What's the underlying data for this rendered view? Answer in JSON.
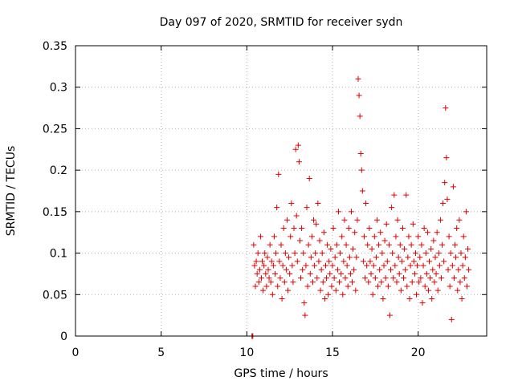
{
  "chart_data": {
    "type": "scatter",
    "title": "Day 097 of 2020, SRMTID for receiver sydn",
    "xlabel": "GPS time / hours",
    "ylabel": "SRMTID / TECUs",
    "xlim": [
      0,
      24
    ],
    "ylim": [
      0,
      0.35
    ],
    "grid": true,
    "marker": "+",
    "color": "#e00000",
    "x_ticks": [
      0,
      5,
      10,
      15,
      20
    ],
    "x_tick_labels": [
      "0",
      "5",
      "10",
      "15",
      "20"
    ],
    "y_ticks": [
      0,
      0.05,
      0.1,
      0.15,
      0.2,
      0.25,
      0.3,
      0.35
    ],
    "y_tick_labels": [
      "0",
      "0.05",
      "0.1",
      "0.15",
      "0.2",
      "0.25",
      "0.3",
      "0.35"
    ],
    "series": [
      {
        "name": "SRMTID",
        "points": [
          [
            10.3,
            0.0
          ],
          [
            10.32,
            0.0
          ],
          [
            10.35,
            0.0
          ],
          [
            10.4,
            0.11
          ],
          [
            10.45,
            0.085
          ],
          [
            10.5,
            0.06
          ],
          [
            10.55,
            0.09
          ],
          [
            10.6,
            0.075
          ],
          [
            10.65,
            0.1
          ],
          [
            10.7,
            0.065
          ],
          [
            10.75,
            0.08
          ],
          [
            10.8,
            0.12
          ],
          [
            10.85,
            0.07
          ],
          [
            10.9,
            0.09
          ],
          [
            10.95,
            0.055
          ],
          [
            11.0,
            0.085
          ],
          [
            11.05,
            0.1
          ],
          [
            11.1,
            0.075
          ],
          [
            11.15,
            0.06
          ],
          [
            11.2,
            0.095
          ],
          [
            11.25,
            0.08
          ],
          [
            11.3,
            0.07
          ],
          [
            11.35,
            0.11
          ],
          [
            11.4,
            0.065
          ],
          [
            11.45,
            0.09
          ],
          [
            11.5,
            0.05
          ],
          [
            11.55,
            0.085
          ],
          [
            11.6,
            0.12
          ],
          [
            11.65,
            0.075
          ],
          [
            11.7,
            0.1
          ],
          [
            11.75,
            0.155
          ],
          [
            11.8,
            0.06
          ],
          [
            11.85,
            0.195
          ],
          [
            11.9,
            0.09
          ],
          [
            11.95,
            0.07
          ],
          [
            12.0,
            0.11
          ],
          [
            12.05,
            0.045
          ],
          [
            12.1,
            0.085
          ],
          [
            12.15,
            0.13
          ],
          [
            12.2,
            0.065
          ],
          [
            12.25,
            0.1
          ],
          [
            12.3,
            0.08
          ],
          [
            12.35,
            0.14
          ],
          [
            12.4,
            0.055
          ],
          [
            12.45,
            0.095
          ],
          [
            12.5,
            0.075
          ],
          [
            12.55,
            0.12
          ],
          [
            12.6,
            0.16
          ],
          [
            12.65,
            0.085
          ],
          [
            12.7,
            0.065
          ],
          [
            12.75,
            0.13
          ],
          [
            12.8,
            0.1
          ],
          [
            12.85,
            0.225
          ],
          [
            12.9,
            0.145
          ],
          [
            12.95,
            0.09
          ],
          [
            13.0,
            0.23
          ],
          [
            13.05,
            0.21
          ],
          [
            13.1,
            0.115
          ],
          [
            13.15,
            0.07
          ],
          [
            13.2,
            0.13
          ],
          [
            13.25,
            0.08
          ],
          [
            13.3,
            0.1
          ],
          [
            13.35,
            0.04
          ],
          [
            13.4,
            0.025
          ],
          [
            13.45,
            0.085
          ],
          [
            13.5,
            0.155
          ],
          [
            13.55,
            0.06
          ],
          [
            13.6,
            0.11
          ],
          [
            13.65,
            0.19
          ],
          [
            13.7,
            0.075
          ],
          [
            13.75,
            0.095
          ],
          [
            13.8,
            0.12
          ],
          [
            13.85,
            0.065
          ],
          [
            13.9,
            0.14
          ],
          [
            13.95,
            0.085
          ],
          [
            14.0,
            0.1
          ],
          [
            14.05,
            0.135
          ],
          [
            14.1,
            0.07
          ],
          [
            14.15,
            0.16
          ],
          [
            14.2,
            0.09
          ],
          [
            14.25,
            0.115
          ],
          [
            14.3,
            0.055
          ],
          [
            14.35,
            0.08
          ],
          [
            14.4,
            0.1
          ],
          [
            14.45,
            0.065
          ],
          [
            14.5,
            0.125
          ],
          [
            14.55,
            0.045
          ],
          [
            14.6,
            0.085
          ],
          [
            14.65,
            0.07
          ],
          [
            14.7,
            0.11
          ],
          [
            14.75,
            0.05
          ],
          [
            14.8,
            0.09
          ],
          [
            14.85,
            0.075
          ],
          [
            14.9,
            0.105
          ],
          [
            14.95,
            0.06
          ],
          [
            15.0,
            0.085
          ],
          [
            15.05,
            0.13
          ],
          [
            15.1,
            0.07
          ],
          [
            15.15,
            0.095
          ],
          [
            15.2,
            0.055
          ],
          [
            15.25,
            0.11
          ],
          [
            15.3,
            0.08
          ],
          [
            15.35,
            0.15
          ],
          [
            15.4,
            0.065
          ],
          [
            15.45,
            0.1
          ],
          [
            15.5,
            0.075
          ],
          [
            15.55,
            0.12
          ],
          [
            15.6,
            0.05
          ],
          [
            15.65,
            0.09
          ],
          [
            15.7,
            0.14
          ],
          [
            15.75,
            0.07
          ],
          [
            15.8,
            0.11
          ],
          [
            15.85,
            0.085
          ],
          [
            15.9,
            0.06
          ],
          [
            15.95,
            0.13
          ],
          [
            16.0,
            0.095
          ],
          [
            16.05,
            0.075
          ],
          [
            16.1,
            0.15
          ],
          [
            16.15,
            0.065
          ],
          [
            16.2,
            0.105
          ],
          [
            16.25,
            0.08
          ],
          [
            16.3,
            0.125
          ],
          [
            16.35,
            0.055
          ],
          [
            16.4,
            0.095
          ],
          [
            16.45,
            0.14
          ],
          [
            16.5,
            0.31
          ],
          [
            16.55,
            0.29
          ],
          [
            16.6,
            0.265
          ],
          [
            16.65,
            0.22
          ],
          [
            16.7,
            0.2
          ],
          [
            16.75,
            0.175
          ],
          [
            16.8,
            0.09
          ],
          [
            16.85,
            0.12
          ],
          [
            16.9,
            0.07
          ],
          [
            16.95,
            0.16
          ],
          [
            17.0,
            0.085
          ],
          [
            17.05,
            0.11
          ],
          [
            17.1,
            0.065
          ],
          [
            17.15,
            0.13
          ],
          [
            17.2,
            0.09
          ],
          [
            17.25,
            0.075
          ],
          [
            17.3,
            0.105
          ],
          [
            17.35,
            0.05
          ],
          [
            17.4,
            0.085
          ],
          [
            17.45,
            0.12
          ],
          [
            17.5,
            0.07
          ],
          [
            17.55,
            0.095
          ],
          [
            17.6,
            0.14
          ],
          [
            17.65,
            0.06
          ],
          [
            17.7,
            0.11
          ],
          [
            17.75,
            0.08
          ],
          [
            17.8,
            0.125
          ],
          [
            17.85,
            0.065
          ],
          [
            17.9,
            0.1
          ],
          [
            17.95,
            0.045
          ],
          [
            18.0,
            0.085
          ],
          [
            18.05,
            0.115
          ],
          [
            18.1,
            0.07
          ],
          [
            18.15,
            0.135
          ],
          [
            18.2,
            0.09
          ],
          [
            18.25,
            0.06
          ],
          [
            18.3,
            0.11
          ],
          [
            18.35,
            0.025
          ],
          [
            18.4,
            0.08
          ],
          [
            18.45,
            0.155
          ],
          [
            18.5,
            0.1
          ],
          [
            18.55,
            0.07
          ],
          [
            18.6,
            0.17
          ],
          [
            18.65,
            0.085
          ],
          [
            18.7,
            0.12
          ],
          [
            18.75,
            0.065
          ],
          [
            18.8,
            0.14
          ],
          [
            18.85,
            0.095
          ],
          [
            18.9,
            0.075
          ],
          [
            18.95,
            0.11
          ],
          [
            19.0,
            0.055
          ],
          [
            19.05,
            0.09
          ],
          [
            19.1,
            0.13
          ],
          [
            19.15,
            0.07
          ],
          [
            19.2,
            0.105
          ],
          [
            19.25,
            0.08
          ],
          [
            19.3,
            0.17
          ],
          [
            19.35,
            0.06
          ],
          [
            19.4,
            0.095
          ],
          [
            19.45,
            0.12
          ],
          [
            19.5,
            0.045
          ],
          [
            19.55,
            0.085
          ],
          [
            19.6,
            0.11
          ],
          [
            19.65,
            0.065
          ],
          [
            19.7,
            0.135
          ],
          [
            19.75,
            0.09
          ],
          [
            19.8,
            0.075
          ],
          [
            19.85,
            0.1
          ],
          [
            19.9,
            0.05
          ],
          [
            19.95,
            0.085
          ],
          [
            20.0,
            0.12
          ],
          [
            20.05,
            0.065
          ],
          [
            20.1,
            0.095
          ],
          [
            20.15,
            0.07
          ],
          [
            20.2,
            0.11
          ],
          [
            20.25,
            0.04
          ],
          [
            20.3,
            0.085
          ],
          [
            20.35,
            0.13
          ],
          [
            20.4,
            0.06
          ],
          [
            20.45,
            0.1
          ],
          [
            20.5,
            0.075
          ],
          [
            20.55,
            0.125
          ],
          [
            20.6,
            0.055
          ],
          [
            20.65,
            0.09
          ],
          [
            20.7,
            0.07
          ],
          [
            20.75,
            0.105
          ],
          [
            20.8,
            0.045
          ],
          [
            20.85,
            0.08
          ],
          [
            20.9,
            0.115
          ],
          [
            20.95,
            0.065
          ],
          [
            21.0,
            0.095
          ],
          [
            21.05,
            0.075
          ],
          [
            21.1,
            0.125
          ],
          [
            21.15,
            0.055
          ],
          [
            21.2,
            0.1
          ],
          [
            21.25,
            0.085
          ],
          [
            21.3,
            0.14
          ],
          [
            21.35,
            0.07
          ],
          [
            21.4,
            0.11
          ],
          [
            21.45,
            0.16
          ],
          [
            21.5,
            0.09
          ],
          [
            21.55,
            0.185
          ],
          [
            21.6,
            0.275
          ],
          [
            21.65,
            0.215
          ],
          [
            21.7,
            0.165
          ],
          [
            21.75,
            0.08
          ],
          [
            21.8,
            0.12
          ],
          [
            21.85,
            0.06
          ],
          [
            21.9,
            0.1
          ],
          [
            21.95,
            0.02
          ],
          [
            22.0,
            0.085
          ],
          [
            22.05,
            0.18
          ],
          [
            22.1,
            0.07
          ],
          [
            22.15,
            0.11
          ],
          [
            22.2,
            0.095
          ],
          [
            22.25,
            0.13
          ],
          [
            22.3,
            0.055
          ],
          [
            22.35,
            0.08
          ],
          [
            22.4,
            0.14
          ],
          [
            22.45,
            0.065
          ],
          [
            22.5,
            0.1
          ],
          [
            22.55,
            0.045
          ],
          [
            22.6,
            0.085
          ],
          [
            22.65,
            0.12
          ],
          [
            22.7,
            0.07
          ],
          [
            22.75,
            0.095
          ],
          [
            22.8,
            0.15
          ],
          [
            22.85,
            0.06
          ],
          [
            22.9,
            0.105
          ],
          [
            22.95,
            0.08
          ]
        ]
      }
    ]
  }
}
